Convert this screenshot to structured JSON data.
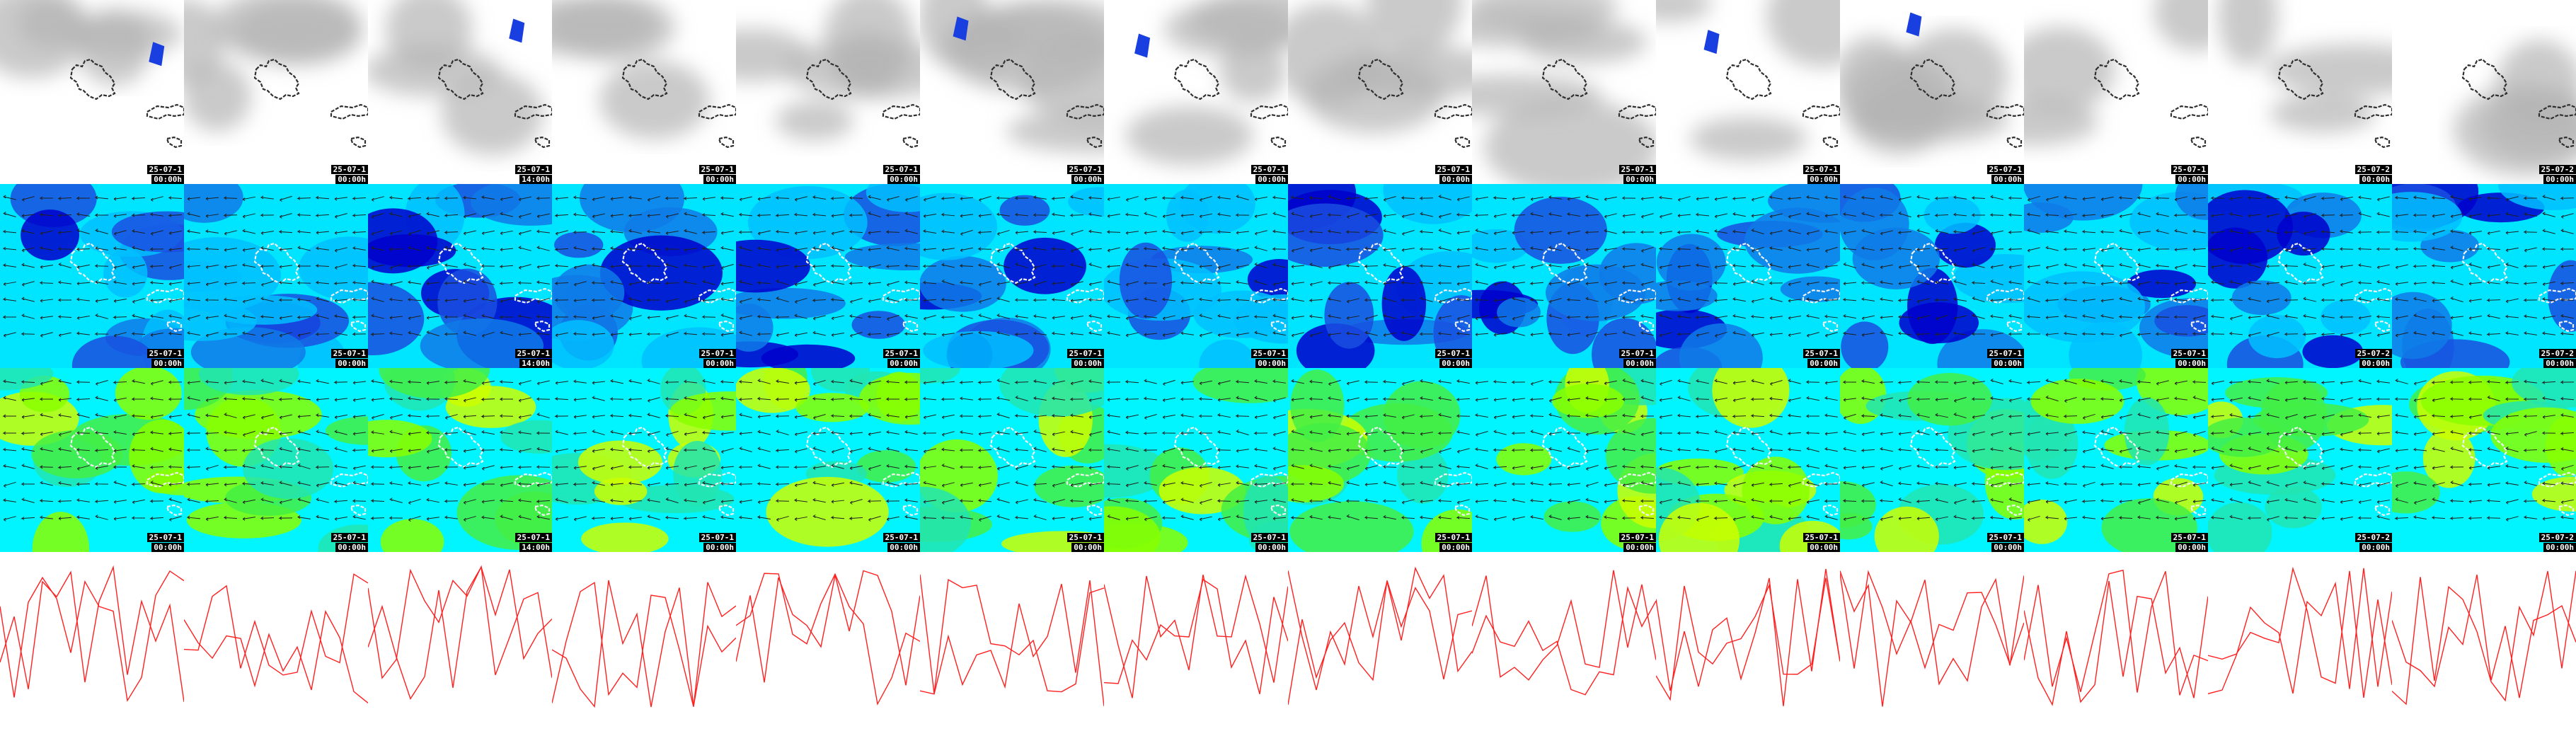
{
  "columns": [
    {
      "date": "25-07-1",
      "time": "00:00h"
    },
    {
      "date": "25-07-1",
      "time": "00:00h"
    },
    {
      "date": "25-07-1",
      "time": "14:00h"
    },
    {
      "date": "25-07-1",
      "time": "00:00h"
    },
    {
      "date": "25-07-1",
      "time": "00:00h"
    },
    {
      "date": "25-07-1",
      "time": "00:00h"
    },
    {
      "date": "25-07-1",
      "time": "00:00h"
    },
    {
      "date": "25-07-1",
      "time": "00:00h"
    },
    {
      "date": "25-07-1",
      "time": "00:00h"
    },
    {
      "date": "25-07-1",
      "time": "00:00h"
    },
    {
      "date": "25-07-1",
      "time": "00:00h"
    },
    {
      "date": "25-07-1",
      "time": "00:00h"
    },
    {
      "date": "25-07-2",
      "time": "00:00h"
    },
    {
      "date": "25-07-2",
      "time": "00:00h"
    }
  ],
  "rows": [
    {
      "name": "cloud-cover",
      "has_timestamp": true,
      "colors": {
        "bg": "#ffffff",
        "cloud": "#b4b4b4",
        "precip": "#1a3fe0"
      }
    },
    {
      "name": "wind-speed-low",
      "has_timestamp": true,
      "colors": [
        "#00e5ff",
        "#00bfff",
        "#0f7ae8",
        "#1a4fe0",
        "#0000cc"
      ]
    },
    {
      "name": "wind-speed-high",
      "has_timestamp": true,
      "colors": [
        "#00f5ff",
        "#22e4b0",
        "#44ee44",
        "#88ff00",
        "#ccff00"
      ]
    },
    {
      "name": "pressure-isobars",
      "has_timestamp": false,
      "colors": {
        "isobar": "#ff2020"
      }
    }
  ],
  "coastline_color": "#303030"
}
